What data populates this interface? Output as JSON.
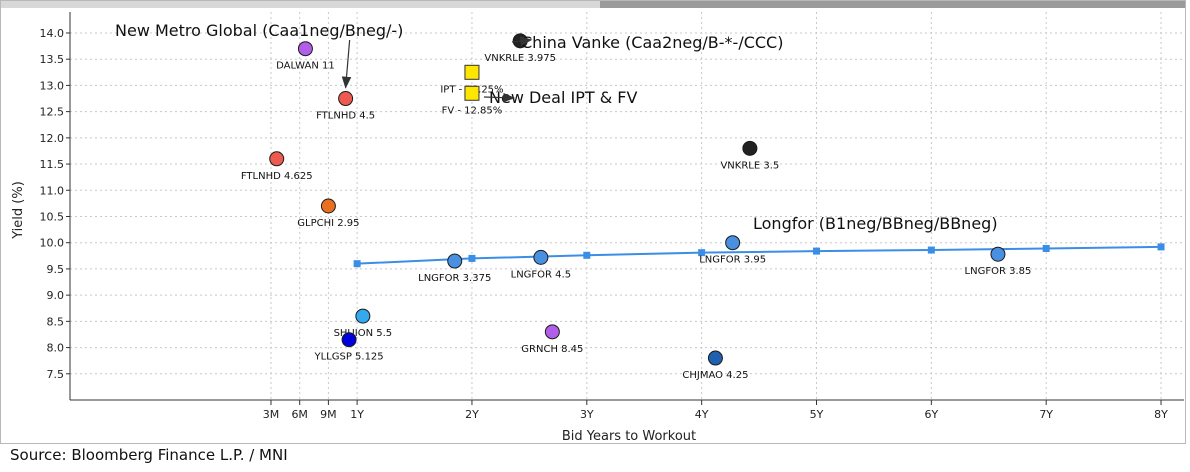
{
  "source": "Source: Bloomberg Finance L.P. / MNI",
  "chart_data": {
    "type": "scatter",
    "xlabel": "Bid Years to Workout",
    "ylabel": "Yield (%)",
    "xlim": [
      -1.5,
      8.2
    ],
    "ylim": [
      7.0,
      14.4
    ],
    "grid": true,
    "x_ticks": [
      {
        "label": "3M",
        "value": 0.25
      },
      {
        "label": "6M",
        "value": 0.5
      },
      {
        "label": "9M",
        "value": 0.75
      },
      {
        "label": "1Y",
        "value": 1
      },
      {
        "label": "2Y",
        "value": 2
      },
      {
        "label": "3Y",
        "value": 3
      },
      {
        "label": "4Y",
        "value": 4
      },
      {
        "label": "5Y",
        "value": 5
      },
      {
        "label": "6Y",
        "value": 6
      },
      {
        "label": "7Y",
        "value": 7
      },
      {
        "label": "8Y",
        "value": 8
      }
    ],
    "y_ticks": [
      {
        "label": "7.5",
        "value": 7.5
      },
      {
        "label": "8.0",
        "value": 8.0
      },
      {
        "label": "8.5",
        "value": 8.5
      },
      {
        "label": "9.0",
        "value": 9.0
      },
      {
        "label": "9.5",
        "value": 9.5
      },
      {
        "label": "10.0",
        "value": 10.0
      },
      {
        "label": "10.5",
        "value": 10.5
      },
      {
        "label": "11.0",
        "value": 11.0
      },
      {
        "label": "11.5",
        "value": 11.5
      },
      {
        "label": "12.0",
        "value": 12.0
      },
      {
        "label": "12.5",
        "value": 12.5
      },
      {
        "label": "13.0",
        "value": 13.0
      },
      {
        "label": "13.5",
        "value": 13.5
      },
      {
        "label": "14.0",
        "value": 14.0
      }
    ],
    "points": [
      {
        "label": "DALWAN 11",
        "x": 0.55,
        "y": 13.7,
        "color": "#b15fe8",
        "labelPos": "below"
      },
      {
        "label": "FTLNHD 4.5",
        "x": 0.9,
        "y": 12.75,
        "color": "#ee5a50",
        "labelPos": "below"
      },
      {
        "label": "FTLNHD 4.625",
        "x": 0.3,
        "y": 11.6,
        "color": "#ee5a50",
        "labelPos": "below"
      },
      {
        "label": "GLPCHI 2.95",
        "x": 0.75,
        "y": 10.7,
        "color": "#e87020",
        "labelPos": "below"
      },
      {
        "label": "SHUION 5.5",
        "x": 1.05,
        "y": 8.6,
        "color": "#33aaee",
        "labelPos": "below"
      },
      {
        "label": "YLLGSP 5.125",
        "x": 0.93,
        "y": 8.15,
        "color": "#0000dd",
        "labelPos": "below"
      },
      {
        "label": "VNKRLE 3.975",
        "x": 2.42,
        "y": 13.85,
        "color": "#222222",
        "labelPos": "below"
      },
      {
        "label": "VNKRLE 3.5",
        "x": 4.42,
        "y": 11.8,
        "color": "#222222",
        "labelPos": "below"
      },
      {
        "label": "LNGFOR 3.375",
        "x": 1.85,
        "y": 9.65,
        "color": "#4a90e2",
        "labelPos": "below"
      },
      {
        "label": "LNGFOR 4.5",
        "x": 2.6,
        "y": 9.72,
        "color": "#4a90e2",
        "labelPos": "below"
      },
      {
        "label": "LNGFOR 3.95",
        "x": 4.27,
        "y": 10.0,
        "color": "#4a90e2",
        "labelPos": "below"
      },
      {
        "label": "LNGFOR 3.85",
        "x": 6.58,
        "y": 9.78,
        "color": "#4a90e2",
        "labelPos": "below"
      },
      {
        "label": "GRNCH 8.45",
        "x": 2.7,
        "y": 8.3,
        "color": "#b15fe8",
        "labelPos": "below"
      },
      {
        "label": "CHJMAO 4.25",
        "x": 4.12,
        "y": 7.8,
        "color": "#2060b0",
        "labelPos": "below"
      }
    ],
    "new_deal_points": [
      {
        "label": "IPT - 13.25%",
        "x": 2.0,
        "y": 13.25
      },
      {
        "label": "FV - 12.85%",
        "x": 2.0,
        "y": 12.85
      }
    ],
    "curve": {
      "name": "Longfor (B1neg/BBneg/BBneg)",
      "color": "#3a8ee6",
      "points": [
        {
          "x": 1.0,
          "y": 9.6
        },
        {
          "x": 2.0,
          "y": 9.7
        },
        {
          "x": 3.0,
          "y": 9.76
        },
        {
          "x": 4.0,
          "y": 9.81
        },
        {
          "x": 5.0,
          "y": 9.84
        },
        {
          "x": 6.0,
          "y": 9.86
        },
        {
          "x": 7.0,
          "y": 9.89
        },
        {
          "x": 8.0,
          "y": 9.92
        }
      ]
    },
    "annotations": [
      {
        "id": "new-metro",
        "text": "New Metro Global (Caa1neg/Bneg/-)"
      },
      {
        "id": "china-vanke",
        "text": "China Vanke (Caa2neg/B-*-/CCC)"
      },
      {
        "id": "new-deal",
        "text": "New Deal IPT & FV"
      }
    ]
  }
}
